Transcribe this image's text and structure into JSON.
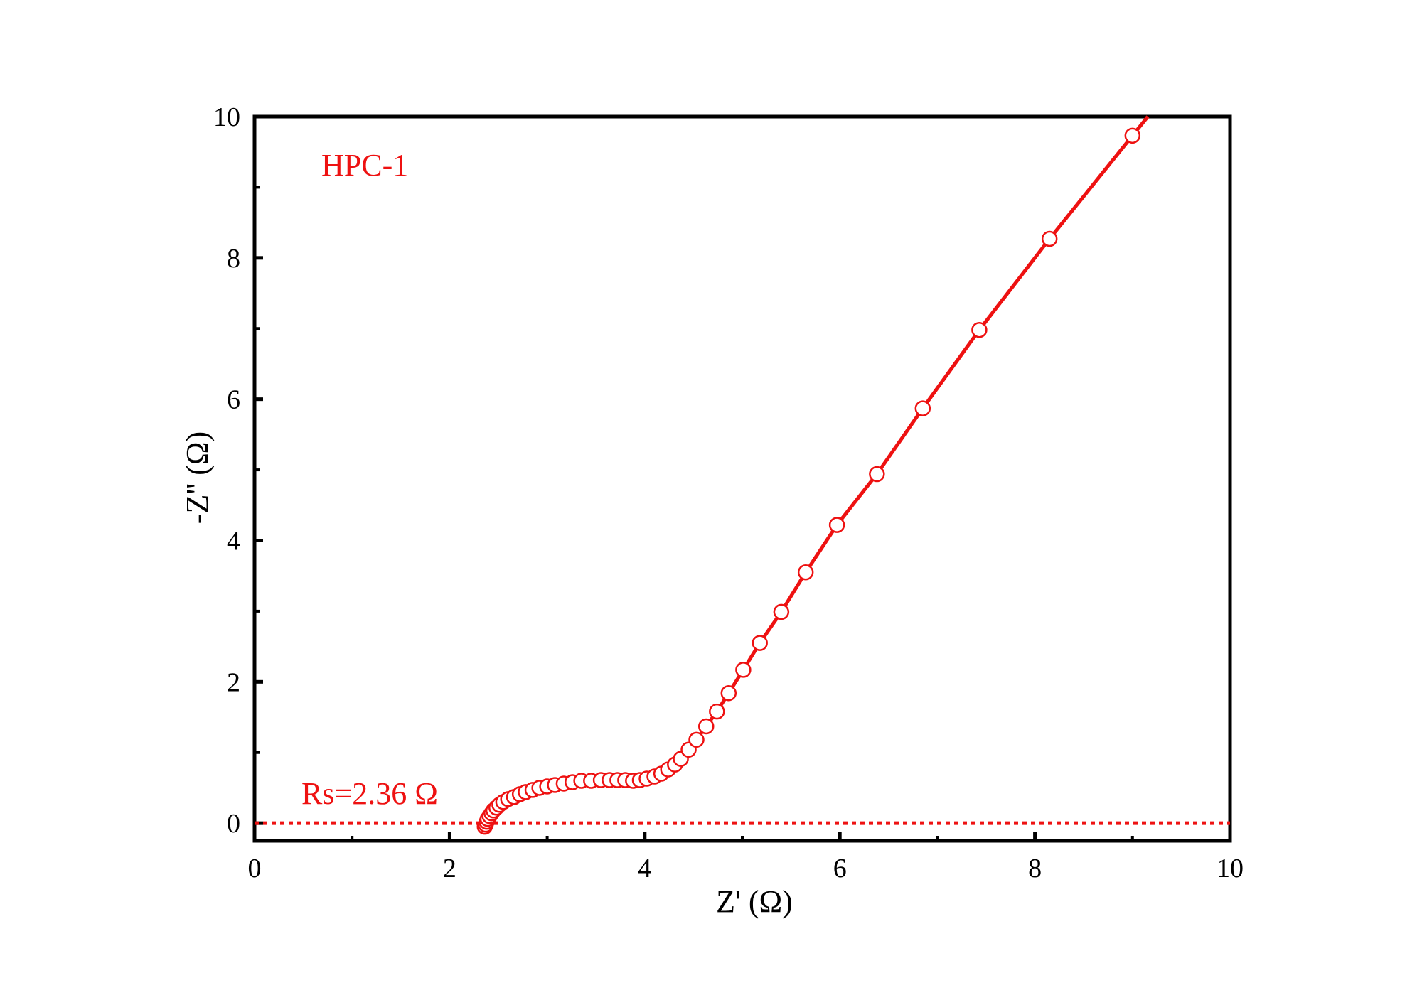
{
  "chart_data": {
    "type": "scatter",
    "xlabel": "Z' (Ω)",
    "ylabel": "-Z'' (Ω)",
    "xlim": [
      0,
      10
    ],
    "ylim": [
      -0.25,
      10
    ],
    "xticks": [
      "0",
      "2",
      "4",
      "6",
      "8",
      "10"
    ],
    "yticks": [
      "0",
      "2",
      "4",
      "6",
      "8",
      "10"
    ],
    "grid": false,
    "line_color": "#ee1111",
    "annotations": [
      {
        "text": "HPC-1",
        "x": 0.7,
        "y": 9.3,
        "color": "#ee1111"
      },
      {
        "text": "Rs=2.36 Ω",
        "x": 0.5,
        "y": 0.35,
        "color": "#ee1111"
      }
    ],
    "reference_line": {
      "y": 0,
      "style": "dotted",
      "color": "#ee1111"
    },
    "series": [
      {
        "marker": "open-circle",
        "x": [
          2.36,
          2.37,
          2.38,
          2.39,
          2.41,
          2.43,
          2.45,
          2.48,
          2.51,
          2.55,
          2.6,
          2.66,
          2.72,
          2.78,
          2.85,
          2.92,
          3.0,
          3.08,
          3.17,
          3.26,
          3.35,
          3.45,
          3.55,
          3.64,
          3.72,
          3.8,
          3.88,
          3.95,
          4.02,
          4.1,
          4.17,
          4.24,
          4.31,
          4.37,
          4.45,
          4.53,
          4.63,
          4.74,
          4.86,
          5.01,
          5.18,
          5.4,
          5.65,
          5.97,
          6.38,
          6.85,
          7.43,
          8.15,
          9.0
        ],
        "y": [
          -0.05,
          -0.02,
          0.02,
          0.06,
          0.1,
          0.14,
          0.18,
          0.22,
          0.26,
          0.3,
          0.34,
          0.37,
          0.41,
          0.44,
          0.47,
          0.5,
          0.52,
          0.54,
          0.56,
          0.58,
          0.6,
          0.6,
          0.61,
          0.61,
          0.61,
          0.61,
          0.6,
          0.61,
          0.63,
          0.66,
          0.7,
          0.76,
          0.83,
          0.91,
          1.04,
          1.18,
          1.37,
          1.58,
          1.84,
          2.17,
          2.55,
          2.99,
          3.55,
          4.22,
          4.94,
          5.87,
          6.98,
          8.27,
          9.73
        ]
      }
    ]
  }
}
